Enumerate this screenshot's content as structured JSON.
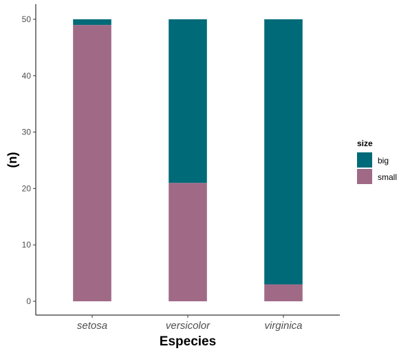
{
  "chart_data": {
    "type": "bar",
    "stacked": true,
    "categories": [
      "setosa",
      "versicolor",
      "virginica"
    ],
    "series": [
      {
        "name": "big",
        "values": [
          1,
          29,
          47
        ],
        "color": "#006a78"
      },
      {
        "name": "small",
        "values": [
          49,
          21,
          3
        ],
        "color": "#a06a87"
      }
    ],
    "xlabel": "Especies",
    "ylabel": "(n)",
    "ylim": [
      0,
      50
    ],
    "yticks": [
      0,
      10,
      20,
      30,
      40,
      50
    ],
    "grid": false,
    "legend": {
      "title": "size",
      "placement": "right",
      "entries": [
        "big",
        "small"
      ]
    }
  }
}
